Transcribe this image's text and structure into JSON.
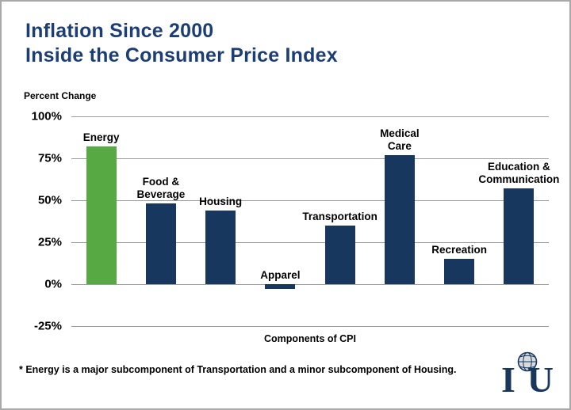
{
  "header": {
    "title_line1": "Inflation Since 2000",
    "title_line2": "Inside the Consumer Price Index"
  },
  "chart_data": {
    "type": "bar",
    "title": "Inflation Since 2000 — Inside the Consumer Price Index",
    "ylabel": "Percent Change",
    "xlabel": "Components of CPI",
    "ylim": [
      -25,
      100
    ],
    "yticks": [
      100,
      75,
      50,
      25,
      0,
      -25
    ],
    "ytick_labels": [
      "100%",
      "75%",
      "50%",
      "25%",
      "0%",
      "-25%"
    ],
    "categories": [
      "Energy",
      "Food & Beverage",
      "Housing",
      "Apparel",
      "Transportation",
      "Medical Care",
      "Recreation",
      "Education & Communication"
    ],
    "label_lines": [
      [
        "Energy"
      ],
      [
        "Food &",
        "Beverage"
      ],
      [
        "Housing"
      ],
      [
        "Apparel"
      ],
      [
        "Transportation"
      ],
      [
        "Medical",
        "Care"
      ],
      [
        "Recreation"
      ],
      [
        "Education &",
        "Communication"
      ]
    ],
    "values": [
      82,
      48,
      44,
      -3,
      35,
      77,
      15,
      57
    ],
    "bar_colors": [
      "#57a943",
      "#17375e",
      "#17375e",
      "#17375e",
      "#17375e",
      "#17375e",
      "#17375e",
      "#17375e"
    ],
    "grid": true,
    "legend": false
  },
  "footnote": "* Energy is a major subcomponent of Transportation and a minor subcomponent of Housing.",
  "colors": {
    "title": "#1c3e74",
    "bar_navy": "#17375e",
    "bar_green": "#57a943",
    "gridline": "#9e9e9e"
  },
  "logo": {
    "letter_left": "I",
    "letter_right": "U"
  }
}
